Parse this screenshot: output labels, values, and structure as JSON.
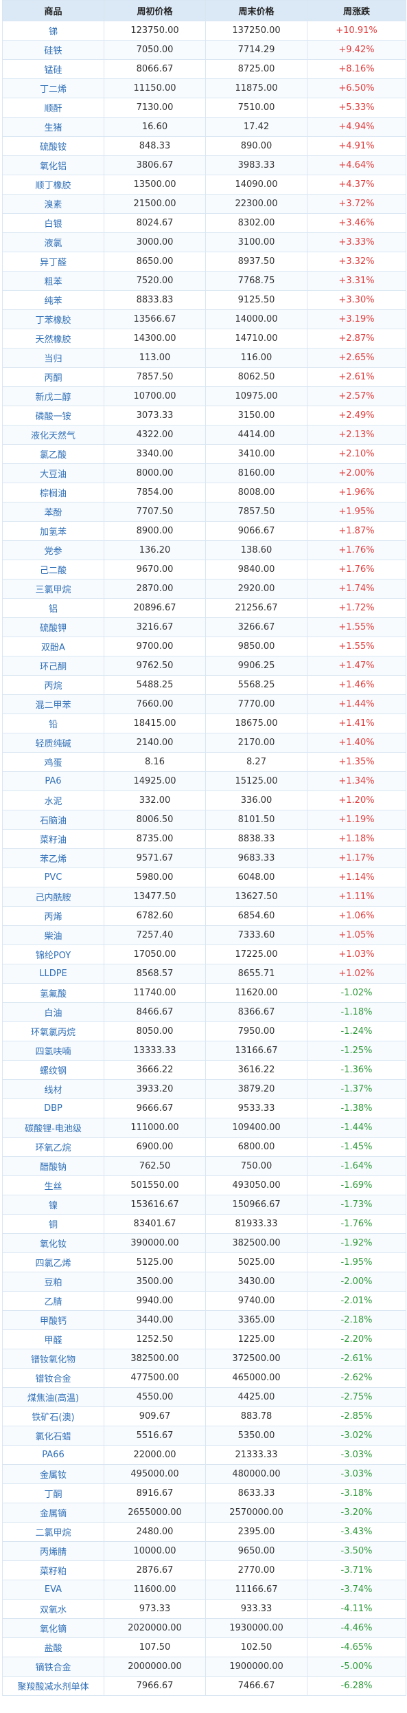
{
  "table": {
    "headers": [
      "商品",
      "周初价格",
      "周末价格",
      "周涨跌"
    ],
    "rows": [
      [
        "锑",
        "123750.00",
        "137250.00",
        "+10.91%"
      ],
      [
        "硅铁",
        "7050.00",
        "7714.29",
        "+9.42%"
      ],
      [
        "锰硅",
        "8066.67",
        "8725.00",
        "+8.16%"
      ],
      [
        "丁二烯",
        "11150.00",
        "11875.00",
        "+6.50%"
      ],
      [
        "顺酐",
        "7130.00",
        "7510.00",
        "+5.33%"
      ],
      [
        "生猪",
        "16.60",
        "17.42",
        "+4.94%"
      ],
      [
        "硫酸铵",
        "848.33",
        "890.00",
        "+4.91%"
      ],
      [
        "氧化铝",
        "3806.67",
        "3983.33",
        "+4.64%"
      ],
      [
        "顺丁橡胶",
        "13500.00",
        "14090.00",
        "+4.37%"
      ],
      [
        "溴素",
        "21500.00",
        "22300.00",
        "+3.72%"
      ],
      [
        "白银",
        "8024.67",
        "8302.00",
        "+3.46%"
      ],
      [
        "液氯",
        "3000.00",
        "3100.00",
        "+3.33%"
      ],
      [
        "异丁醛",
        "8650.00",
        "8937.50",
        "+3.32%"
      ],
      [
        "粗苯",
        "7520.00",
        "7768.75",
        "+3.31%"
      ],
      [
        "纯苯",
        "8833.83",
        "9125.50",
        "+3.30%"
      ],
      [
        "丁苯橡胶",
        "13566.67",
        "14000.00",
        "+3.19%"
      ],
      [
        "天然橡胶",
        "14300.00",
        "14710.00",
        "+2.87%"
      ],
      [
        "当归",
        "113.00",
        "116.00",
        "+2.65%"
      ],
      [
        "丙酮",
        "7857.50",
        "8062.50",
        "+2.61%"
      ],
      [
        "新戊二醇",
        "10700.00",
        "10975.00",
        "+2.57%"
      ],
      [
        "磷酸一铵",
        "3073.33",
        "3150.00",
        "+2.49%"
      ],
      [
        "液化天然气",
        "4322.00",
        "4414.00",
        "+2.13%"
      ],
      [
        "氯乙酸",
        "3340.00",
        "3410.00",
        "+2.10%"
      ],
      [
        "大豆油",
        "8000.00",
        "8160.00",
        "+2.00%"
      ],
      [
        "棕榈油",
        "7854.00",
        "8008.00",
        "+1.96%"
      ],
      [
        "苯酚",
        "7707.50",
        "7857.50",
        "+1.95%"
      ],
      [
        "加氢苯",
        "8900.00",
        "9066.67",
        "+1.87%"
      ],
      [
        "党参",
        "136.20",
        "138.60",
        "+1.76%"
      ],
      [
        "己二酸",
        "9670.00",
        "9840.00",
        "+1.76%"
      ],
      [
        "三氯甲烷",
        "2870.00",
        "2920.00",
        "+1.74%"
      ],
      [
        "铝",
        "20896.67",
        "21256.67",
        "+1.72%"
      ],
      [
        "硫酸钾",
        "3216.67",
        "3266.67",
        "+1.55%"
      ],
      [
        "双酚A",
        "9700.00",
        "9850.00",
        "+1.55%"
      ],
      [
        "环己酮",
        "9762.50",
        "9906.25",
        "+1.47%"
      ],
      [
        "丙烷",
        "5488.25",
        "5568.25",
        "+1.46%"
      ],
      [
        "混二甲苯",
        "7660.00",
        "7770.00",
        "+1.44%"
      ],
      [
        "铅",
        "18415.00",
        "18675.00",
        "+1.41%"
      ],
      [
        "轻质纯碱",
        "2140.00",
        "2170.00",
        "+1.40%"
      ],
      [
        "鸡蛋",
        "8.16",
        "8.27",
        "+1.35%"
      ],
      [
        "PA6",
        "14925.00",
        "15125.00",
        "+1.34%"
      ],
      [
        "水泥",
        "332.00",
        "336.00",
        "+1.20%"
      ],
      [
        "石脑油",
        "8006.50",
        "8101.50",
        "+1.19%"
      ],
      [
        "菜籽油",
        "8735.00",
        "8838.33",
        "+1.18%"
      ],
      [
        "苯乙烯",
        "9571.67",
        "9683.33",
        "+1.17%"
      ],
      [
        "PVC",
        "5980.00",
        "6048.00",
        "+1.14%"
      ],
      [
        "己内酰胺",
        "13477.50",
        "13627.50",
        "+1.11%"
      ],
      [
        "丙烯",
        "6782.60",
        "6854.60",
        "+1.06%"
      ],
      [
        "柴油",
        "7257.40",
        "7333.60",
        "+1.05%"
      ],
      [
        "锦纶POY",
        "17050.00",
        "17225.00",
        "+1.03%"
      ],
      [
        "LLDPE",
        "8568.57",
        "8655.71",
        "+1.02%"
      ],
      [
        "氢氟酸",
        "11740.00",
        "11620.00",
        "-1.02%"
      ],
      [
        "白油",
        "8466.67",
        "8366.67",
        "-1.18%"
      ],
      [
        "环氧氯丙烷",
        "8050.00",
        "7950.00",
        "-1.24%"
      ],
      [
        "四氢呋喃",
        "13333.33",
        "13166.67",
        "-1.25%"
      ],
      [
        "螺纹钢",
        "3666.22",
        "3616.22",
        "-1.36%"
      ],
      [
        "线材",
        "3933.20",
        "3879.20",
        "-1.37%"
      ],
      [
        "DBP",
        "9666.67",
        "9533.33",
        "-1.38%"
      ],
      [
        "碳酸锂-电池级",
        "111000.00",
        "109400.00",
        "-1.44%"
      ],
      [
        "环氧乙烷",
        "6900.00",
        "6800.00",
        "-1.45%"
      ],
      [
        "醋酸钠",
        "762.50",
        "750.00",
        "-1.64%"
      ],
      [
        "生丝",
        "501550.00",
        "493050.00",
        "-1.69%"
      ],
      [
        "镍",
        "153616.67",
        "150966.67",
        "-1.73%"
      ],
      [
        "铜",
        "83401.67",
        "81933.33",
        "-1.76%"
      ],
      [
        "氧化钕",
        "390000.00",
        "382500.00",
        "-1.92%"
      ],
      [
        "四氯乙烯",
        "5125.00",
        "5025.00",
        "-1.95%"
      ],
      [
        "豆粕",
        "3500.00",
        "3430.00",
        "-2.00%"
      ],
      [
        "乙腈",
        "9940.00",
        "9740.00",
        "-2.01%"
      ],
      [
        "甲酸钙",
        "3440.00",
        "3365.00",
        "-2.18%"
      ],
      [
        "甲醛",
        "1252.50",
        "1225.00",
        "-2.20%"
      ],
      [
        "镨钕氧化物",
        "382500.00",
        "372500.00",
        "-2.61%"
      ],
      [
        "镨钕合金",
        "477500.00",
        "465000.00",
        "-2.62%"
      ],
      [
        "煤焦油(高温)",
        "4550.00",
        "4425.00",
        "-2.75%"
      ],
      [
        "铁矿石(澳)",
        "909.67",
        "883.78",
        "-2.85%"
      ],
      [
        "氯化石蜡",
        "5516.67",
        "5350.00",
        "-3.02%"
      ],
      [
        "PA66",
        "22000.00",
        "21333.33",
        "-3.03%"
      ],
      [
        "金属钕",
        "495000.00",
        "480000.00",
        "-3.03%"
      ],
      [
        "丁酮",
        "8916.67",
        "8633.33",
        "-3.18%"
      ],
      [
        "金属镝",
        "2655000.00",
        "2570000.00",
        "-3.20%"
      ],
      [
        "二氯甲烷",
        "2480.00",
        "2395.00",
        "-3.43%"
      ],
      [
        "丙烯腈",
        "10000.00",
        "9650.00",
        "-3.50%"
      ],
      [
        "菜籽粕",
        "2876.67",
        "2770.00",
        "-3.71%"
      ],
      [
        "EVA",
        "11600.00",
        "11166.67",
        "-3.74%"
      ],
      [
        "双氧水",
        "973.33",
        "933.33",
        "-4.11%"
      ],
      [
        "氧化镝",
        "2020000.00",
        "1930000.00",
        "-4.46%"
      ],
      [
        "盐酸",
        "107.50",
        "102.50",
        "-4.65%"
      ],
      [
        "镝铁合金",
        "2000000.00",
        "1900000.00",
        "-5.00%"
      ],
      [
        "聚羧酸减水剂单体",
        "7966.67",
        "7466.67",
        "-6.28%"
      ]
    ]
  },
  "colors": {
    "up": "#e23b3b",
    "down": "#2e9b3a",
    "name": "#2f6fb7",
    "header_bg": "#dbe8f5"
  }
}
